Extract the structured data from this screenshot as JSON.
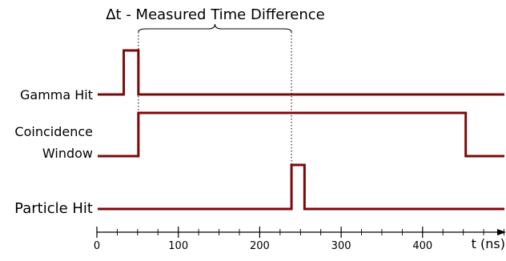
{
  "diagram": {
    "annotation": "Δt - Measured Time Difference",
    "signals": [
      {
        "id": "gamma",
        "label_lines": [
          "Gamma Hit"
        ],
        "high_start_ns": 33,
        "high_end_ns": 51
      },
      {
        "id": "window",
        "label_lines": [
          "Coincidence",
          "Window"
        ],
        "high_start_ns": 51,
        "high_end_ns": 453
      },
      {
        "id": "particle",
        "label_lines": [
          "Particle Hit"
        ],
        "high_start_ns": 239,
        "high_end_ns": 255
      }
    ],
    "delta_t": {
      "start_ns": 51,
      "end_ns": 239
    },
    "axis": {
      "label": "t (ns)",
      "min_ns": 0,
      "max_ns": 500,
      "major_ticks": [
        "0",
        "100",
        "200",
        "300",
        "400"
      ],
      "major_tick_values": [
        0,
        100,
        200,
        300,
        400
      ],
      "minor_step_ns": 25
    },
    "colors": {
      "signal": "#7a0a0a",
      "text": "#000000"
    }
  }
}
